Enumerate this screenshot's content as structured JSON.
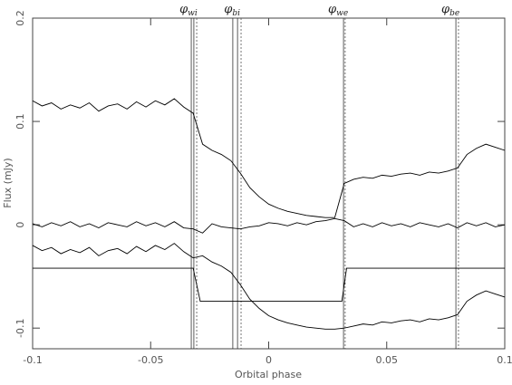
{
  "chart_data": {
    "type": "line",
    "xlabel": "Orbital phase",
    "ylabel": "Flux (mJy)",
    "xlim": [
      -0.1,
      0.1
    ],
    "xticks": [
      -0.1,
      -0.05,
      0,
      0.05,
      0.1
    ],
    "ylim": [
      -0.12,
      0.2
    ],
    "yticks": [
      -0.1,
      0,
      0.1,
      0.2
    ],
    "series": [
      {
        "color": "#000000",
        "x": [
          -0.1,
          -0.096,
          -0.092,
          -0.088,
          -0.084,
          -0.08,
          -0.076,
          -0.072,
          -0.068,
          -0.064,
          -0.06,
          -0.056,
          -0.052,
          -0.048,
          -0.044,
          -0.04,
          -0.036,
          -0.032,
          -0.028,
          -0.024,
          -0.02,
          -0.016,
          -0.012,
          -0.008,
          -0.004,
          0,
          0.004,
          0.008,
          0.012,
          0.016,
          0.02,
          0.024,
          0.028,
          0.032,
          0.036,
          0.04,
          0.044,
          0.048,
          0.052,
          0.056,
          0.06,
          0.064,
          0.068,
          0.072,
          0.076,
          0.08,
          0.084,
          0.088,
          0.092,
          0.096,
          0.1
        ],
        "values": [
          0.12,
          0.115,
          0.118,
          0.112,
          0.116,
          0.113,
          0.118,
          0.11,
          0.115,
          0.117,
          0.112,
          0.119,
          0.114,
          0.12,
          0.116,
          0.122,
          0.114,
          0.108,
          0.078,
          0.072,
          0.068,
          0.062,
          0.05,
          0.036,
          0.027,
          0.02,
          0.016,
          0.013,
          0.011,
          0.009,
          0.008,
          0.007,
          0.007,
          0.04,
          0.044,
          0.046,
          0.045,
          0.048,
          0.047,
          0.049,
          0.05,
          0.048,
          0.051,
          0.05,
          0.052,
          0.055,
          0.068,
          0.074,
          0.078,
          0.075,
          0.072
        ]
      },
      {
        "color": "#000000",
        "x": [
          -0.1,
          -0.096,
          -0.092,
          -0.088,
          -0.084,
          -0.08,
          -0.076,
          -0.072,
          -0.068,
          -0.064,
          -0.06,
          -0.056,
          -0.052,
          -0.048,
          -0.044,
          -0.04,
          -0.036,
          -0.032,
          -0.028,
          -0.024,
          -0.02,
          -0.016,
          -0.012,
          -0.008,
          -0.004,
          0,
          0.004,
          0.008,
          0.012,
          0.016,
          0.02,
          0.024,
          0.028,
          0.032,
          0.036,
          0.04,
          0.044,
          0.048,
          0.052,
          0.056,
          0.06,
          0.064,
          0.068,
          0.072,
          0.076,
          0.08,
          0.084,
          0.088,
          0.092,
          0.096,
          0.1
        ],
        "values": [
          0.001,
          -0.002,
          0.002,
          -0.001,
          0.003,
          -0.002,
          0.001,
          -0.003,
          0.002,
          0,
          -0.002,
          0.003,
          -0.001,
          0.002,
          -0.002,
          0.003,
          -0.003,
          -0.004,
          -0.008,
          0.001,
          -0.002,
          -0.003,
          -0.004,
          -0.002,
          -0.001,
          0.002,
          0.001,
          -0.001,
          0.002,
          0,
          0.003,
          0.004,
          0.006,
          0.004,
          -0.002,
          0.001,
          -0.002,
          0.002,
          -0.001,
          0.001,
          -0.002,
          0.002,
          0,
          -0.002,
          0.001,
          -0.003,
          0.002,
          -0.001,
          0.002,
          -0.002,
          0
        ]
      },
      {
        "color": "#000000",
        "x": [
          -0.1,
          -0.096,
          -0.092,
          -0.088,
          -0.084,
          -0.08,
          -0.076,
          -0.072,
          -0.068,
          -0.064,
          -0.06,
          -0.056,
          -0.052,
          -0.048,
          -0.044,
          -0.04,
          -0.036,
          -0.032,
          -0.028,
          -0.024,
          -0.02,
          -0.016,
          -0.012,
          -0.008,
          -0.004,
          0,
          0.004,
          0.008,
          0.012,
          0.016,
          0.02,
          0.024,
          0.028,
          0.032,
          0.036,
          0.04,
          0.044,
          0.048,
          0.052,
          0.056,
          0.06,
          0.064,
          0.068,
          0.072,
          0.076,
          0.08,
          0.084,
          0.088,
          0.092,
          0.096,
          0.1
        ],
        "values": [
          -0.02,
          -0.025,
          -0.022,
          -0.028,
          -0.024,
          -0.027,
          -0.022,
          -0.03,
          -0.025,
          -0.023,
          -0.028,
          -0.021,
          -0.026,
          -0.02,
          -0.024,
          -0.018,
          -0.026,
          -0.032,
          -0.03,
          -0.036,
          -0.04,
          -0.046,
          -0.058,
          -0.072,
          -0.081,
          -0.088,
          -0.092,
          -0.095,
          -0.097,
          -0.099,
          -0.1,
          -0.101,
          -0.101,
          -0.1,
          -0.098,
          -0.096,
          -0.097,
          -0.094,
          -0.095,
          -0.093,
          -0.092,
          -0.094,
          -0.091,
          -0.092,
          -0.09,
          -0.087,
          -0.074,
          -0.068,
          -0.064,
          -0.067,
          -0.07
        ]
      },
      {
        "color": "#000000",
        "x": [
          -0.1,
          -0.032,
          -0.029,
          0.031,
          0.033,
          0.1
        ],
        "values": [
          -0.042,
          -0.042,
          -0.074,
          -0.074,
          -0.042,
          -0.042
        ]
      }
    ],
    "phase_markers": [
      {
        "symbol": "φ",
        "subscript": "wi",
        "x": [
          -0.0328,
          -0.0317
        ],
        "dotted_x": [
          -0.0305
        ]
      },
      {
        "symbol": "φ",
        "subscript": "bi",
        "x": [
          -0.0152,
          -0.0132
        ],
        "dotted_x": [
          -0.0117
        ]
      },
      {
        "symbol": "φ",
        "subscript": "we",
        "x": [
          0.0317
        ],
        "dotted_x": [
          0.0324
        ]
      },
      {
        "symbol": "φ",
        "subscript": "be",
        "x": [
          0.0793
        ],
        "dotted_x": [
          0.0804
        ]
      }
    ]
  }
}
